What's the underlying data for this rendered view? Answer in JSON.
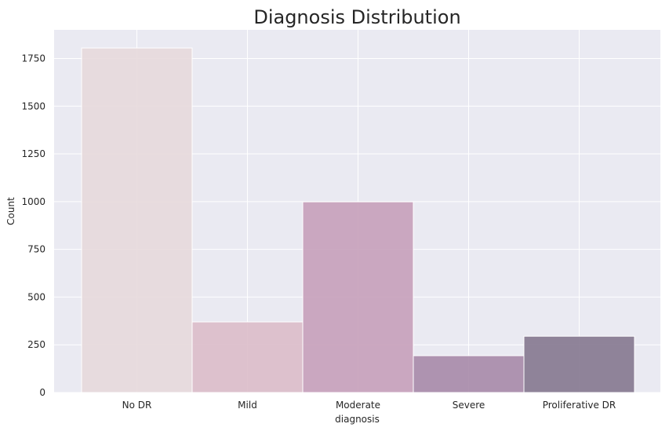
{
  "chart_data": {
    "type": "bar",
    "title": "Diagnosis Distribution",
    "xlabel": "diagnosis",
    "ylabel": "Count",
    "categories": [
      "No DR",
      "Mild",
      "Moderate",
      "Severe",
      "Proliferative DR"
    ],
    "values": [
      1805,
      370,
      999,
      193,
      295
    ],
    "ylim": [
      0,
      1900
    ],
    "yticks": [
      0,
      250,
      500,
      750,
      1000,
      1250,
      1500,
      1750
    ],
    "grid": true,
    "background": "#eaeaf2",
    "grid_color": "#ffffff",
    "bar_colors": [
      "#e7d9dc",
      "#dcbcc9",
      "#c6a0ba",
      "#a78aa9",
      "#85788f"
    ],
    "bar_edge_color": "#ffffff"
  }
}
